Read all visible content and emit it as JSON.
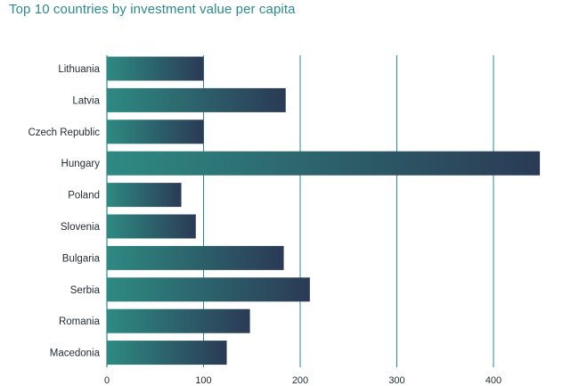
{
  "colors": {
    "title": "#2a8a8f",
    "gridline": "#2a8a8f",
    "bar_start": "#2e8a82",
    "bar_end": "#2b3a55",
    "text": "#1f2a30"
  },
  "chart_data": {
    "type": "bar",
    "orientation": "horizontal",
    "title": "Top 10 countries by investment value per capita",
    "xlabel": "",
    "ylabel": "",
    "categories": [
      "Lithuania",
      "Latvia",
      "Czech Republic",
      "Hungary",
      "Poland",
      "Slovenia",
      "Bulgaria",
      "Serbia",
      "Romania",
      "Macedonia"
    ],
    "values": [
      100,
      185,
      100,
      448,
      77,
      92,
      183,
      210,
      148,
      124
    ],
    "xlim": [
      0,
      450
    ],
    "xticks": [
      0,
      100,
      200,
      300,
      400
    ],
    "xtick_labels": [
      "0",
      "100",
      "200",
      "300",
      "400"
    ],
    "grid": "vertical"
  }
}
